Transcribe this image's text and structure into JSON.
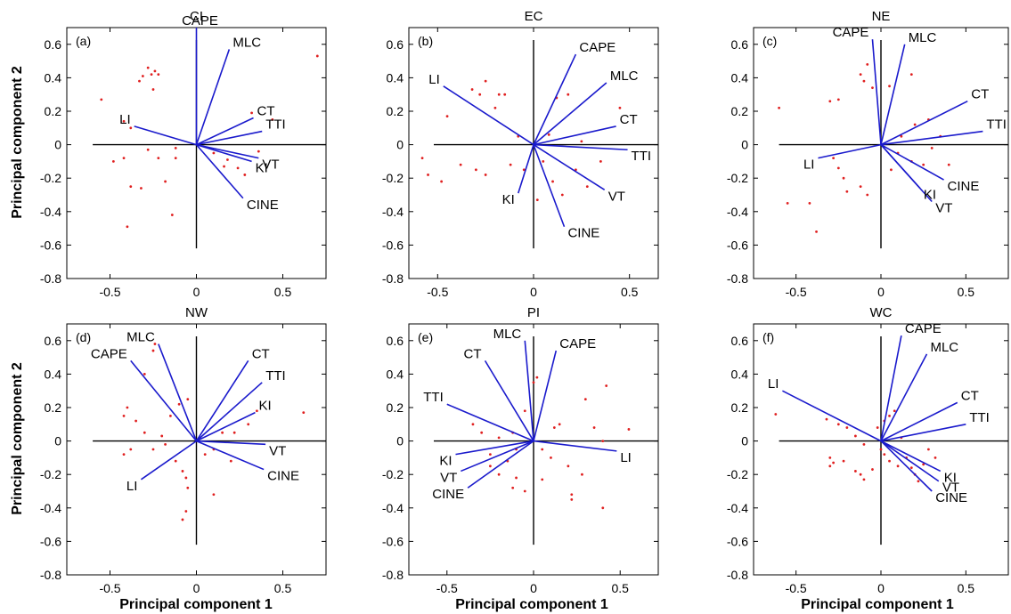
{
  "figure": {
    "ylabel": "Principal component 2",
    "xlabel": "Principal component 1"
  },
  "colors": {
    "vector": "#1a1acc",
    "point": "#e02020",
    "axes": "#000000"
  },
  "chart_data": [
    {
      "type": "scatter",
      "panel": "(a)",
      "title": "CI",
      "xlim": [
        -0.75,
        0.75
      ],
      "ylim": [
        -0.8,
        0.7
      ],
      "xticks": [
        -0.5,
        0,
        0.5
      ],
      "xtick_labels": [
        "-0.5",
        "0",
        "0.5"
      ],
      "yticks": [
        -0.8,
        -0.6,
        -0.4,
        -0.2,
        0,
        0.2,
        0.4,
        0.6
      ],
      "ytick_labels": [
        "-0.8",
        "-0.6",
        "-0.4",
        "-0.2",
        "0",
        "0.2",
        "0.4",
        "0.6"
      ],
      "vectors": [
        {
          "label": "CAPE",
          "x": 0.0,
          "y": 0.7
        },
        {
          "label": "MLC",
          "x": 0.19,
          "y": 0.57
        },
        {
          "label": "CT",
          "x": 0.33,
          "y": 0.16
        },
        {
          "label": "TTI",
          "x": 0.38,
          "y": 0.08
        },
        {
          "label": "KI",
          "x": 0.32,
          "y": -0.1
        },
        {
          "label": "VT",
          "x": 0.36,
          "y": -0.08
        },
        {
          "label": "CINE",
          "x": 0.27,
          "y": -0.32
        },
        {
          "label": "LI",
          "x": -0.36,
          "y": 0.11
        }
      ],
      "points": [
        [
          -0.28,
          0.46
        ],
        [
          -0.26,
          0.42
        ],
        [
          -0.22,
          0.42
        ],
        [
          -0.24,
          0.44
        ],
        [
          -0.31,
          0.41
        ],
        [
          -0.33,
          0.38
        ],
        [
          -0.25,
          0.33
        ],
        [
          -0.55,
          0.27
        ],
        [
          -0.42,
          0.14
        ],
        [
          -0.38,
          0.1
        ],
        [
          -0.28,
          -0.03
        ],
        [
          -0.22,
          -0.08
        ],
        [
          -0.12,
          -0.02
        ],
        [
          -0.42,
          -0.08
        ],
        [
          -0.48,
          -0.1
        ],
        [
          -0.38,
          -0.25
        ],
        [
          -0.32,
          -0.26
        ],
        [
          -0.18,
          -0.22
        ],
        [
          -0.14,
          -0.42
        ],
        [
          -0.4,
          -0.49
        ],
        [
          -0.12,
          -0.08
        ],
        [
          0.1,
          -0.05
        ],
        [
          0.16,
          -0.13
        ],
        [
          0.24,
          -0.14
        ],
        [
          0.28,
          -0.18
        ],
        [
          0.32,
          0.19
        ],
        [
          0.44,
          0.15
        ],
        [
          0.7,
          0.53
        ],
        [
          0.36,
          -0.04
        ],
        [
          0.18,
          -0.09
        ]
      ]
    },
    {
      "type": "scatter",
      "panel": "(b)",
      "title": "EC",
      "xlim": [
        -0.65,
        0.65
      ],
      "ylim": [
        -0.8,
        0.7
      ],
      "xticks": [
        -0.5,
        0,
        0.5
      ],
      "xtick_labels": [
        "-0.5",
        "0",
        "0.5"
      ],
      "yticks": [
        -0.8,
        -0.6,
        -0.4,
        -0.2,
        0,
        0.2,
        0.4,
        0.6
      ],
      "ytick_labels": [
        "-0.8",
        "-0.6",
        "-0.4",
        "-0.2",
        "0",
        "0.2",
        "0.4",
        "0.6"
      ],
      "vectors": [
        {
          "label": "CAPE",
          "x": 0.22,
          "y": 0.54
        },
        {
          "label": "MLC",
          "x": 0.38,
          "y": 0.37
        },
        {
          "label": "CT",
          "x": 0.43,
          "y": 0.11
        },
        {
          "label": "TTI",
          "x": 0.49,
          "y": -0.03
        },
        {
          "label": "VT",
          "x": 0.37,
          "y": -0.27
        },
        {
          "label": "CINE",
          "x": 0.16,
          "y": -0.49
        },
        {
          "label": "KI",
          "x": -0.08,
          "y": -0.29
        },
        {
          "label": "LI",
          "x": -0.47,
          "y": 0.35
        }
      ],
      "points": [
        [
          -0.25,
          0.38
        ],
        [
          -0.32,
          0.33
        ],
        [
          -0.28,
          0.3
        ],
        [
          -0.18,
          0.3
        ],
        [
          -0.15,
          0.3
        ],
        [
          -0.2,
          0.22
        ],
        [
          -0.45,
          0.17
        ],
        [
          -0.58,
          -0.08
        ],
        [
          -0.55,
          -0.18
        ],
        [
          -0.48,
          -0.22
        ],
        [
          -0.38,
          -0.12
        ],
        [
          -0.3,
          -0.15
        ],
        [
          -0.25,
          -0.18
        ],
        [
          -0.12,
          -0.12
        ],
        [
          -0.05,
          -0.15
        ],
        [
          0.05,
          -0.1
        ],
        [
          0.1,
          -0.22
        ],
        [
          0.15,
          -0.3
        ],
        [
          0.22,
          -0.15
        ],
        [
          0.28,
          -0.25
        ],
        [
          0.35,
          -0.1
        ],
        [
          0.12,
          0.28
        ],
        [
          0.18,
          0.3
        ],
        [
          0.25,
          0.02
        ],
        [
          0.45,
          0.22
        ],
        [
          0.08,
          0.06
        ],
        [
          -0.08,
          0.05
        ],
        [
          0.02,
          -0.33
        ]
      ]
    },
    {
      "type": "scatter",
      "panel": "(c)",
      "title": "NE",
      "xlim": [
        -0.75,
        0.75
      ],
      "ylim": [
        -0.8,
        0.7
      ],
      "xticks": [
        -0.5,
        0,
        0.5
      ],
      "xtick_labels": [
        "-0.5",
        "0",
        "0.5"
      ],
      "yticks": [
        -0.8,
        -0.6,
        -0.4,
        -0.2,
        0,
        0.2,
        0.4,
        0.6
      ],
      "ytick_labels": [
        "-0.8",
        "-0.6",
        "-0.4",
        "-0.2",
        "0",
        "0.2",
        "0.4",
        "0.6"
      ],
      "vectors": [
        {
          "label": "CAPE",
          "x": -0.05,
          "y": 0.63
        },
        {
          "label": "MLC",
          "x": 0.14,
          "y": 0.6
        },
        {
          "label": "CT",
          "x": 0.51,
          "y": 0.26
        },
        {
          "label": "TTI",
          "x": 0.6,
          "y": 0.08
        },
        {
          "label": "CINE",
          "x": 0.37,
          "y": -0.21
        },
        {
          "label": "VT",
          "x": 0.3,
          "y": -0.34
        },
        {
          "label": "KI",
          "x": 0.23,
          "y": -0.26
        },
        {
          "label": "LI",
          "x": -0.37,
          "y": -0.08
        }
      ],
      "points": [
        [
          -0.08,
          0.48
        ],
        [
          -0.12,
          0.42
        ],
        [
          -0.1,
          0.38
        ],
        [
          -0.05,
          0.34
        ],
        [
          0.05,
          0.35
        ],
        [
          0.18,
          0.42
        ],
        [
          -0.6,
          0.22
        ],
        [
          -0.3,
          0.26
        ],
        [
          -0.25,
          0.27
        ],
        [
          -0.28,
          -0.08
        ],
        [
          -0.25,
          -0.14
        ],
        [
          -0.22,
          -0.2
        ],
        [
          -0.2,
          -0.28
        ],
        [
          -0.42,
          -0.35
        ],
        [
          -0.55,
          -0.35
        ],
        [
          -0.38,
          -0.52
        ],
        [
          -0.12,
          -0.25
        ],
        [
          -0.08,
          -0.3
        ],
        [
          0.1,
          -0.05
        ],
        [
          0.18,
          -0.1
        ],
        [
          0.25,
          -0.12
        ],
        [
          0.3,
          -0.02
        ],
        [
          0.35,
          0.05
        ],
        [
          0.4,
          -0.12
        ],
        [
          0.12,
          0.05
        ],
        [
          0.2,
          0.12
        ],
        [
          0.28,
          0.15
        ],
        [
          0.06,
          -0.15
        ]
      ]
    },
    {
      "type": "scatter",
      "panel": "(d)",
      "title": "NW",
      "xlim": [
        -0.75,
        0.75
      ],
      "ylim": [
        -0.8,
        0.7
      ],
      "xticks": [
        -0.5,
        0,
        0.5
      ],
      "xtick_labels": [
        "-0.5",
        "0",
        "0.5"
      ],
      "yticks": [
        -0.8,
        -0.6,
        -0.4,
        -0.2,
        0,
        0.2,
        0.4,
        0.6
      ],
      "ytick_labels": [
        "-0.8",
        "-0.6",
        "-0.4",
        "-0.2",
        "0",
        "0.2",
        "0.4",
        "0.6"
      ],
      "vectors": [
        {
          "label": "CAPE",
          "x": -0.38,
          "y": 0.48
        },
        {
          "label": "MLC",
          "x": -0.22,
          "y": 0.58
        },
        {
          "label": "CT",
          "x": 0.3,
          "y": 0.48
        },
        {
          "label": "TTI",
          "x": 0.38,
          "y": 0.35
        },
        {
          "label": "KI",
          "x": 0.34,
          "y": 0.17
        },
        {
          "label": "VT",
          "x": 0.4,
          "y": -0.02
        },
        {
          "label": "CINE",
          "x": 0.39,
          "y": -0.17
        },
        {
          "label": "LI",
          "x": -0.32,
          "y": -0.23
        }
      ],
      "points": [
        [
          -0.24,
          0.58
        ],
        [
          -0.25,
          0.54
        ],
        [
          -0.3,
          0.4
        ],
        [
          -0.05,
          0.25
        ],
        [
          -0.1,
          0.22
        ],
        [
          -0.4,
          0.2
        ],
        [
          -0.42,
          0.15
        ],
        [
          -0.35,
          0.12
        ],
        [
          -0.3,
          0.05
        ],
        [
          -0.2,
          0.03
        ],
        [
          -0.15,
          0.15
        ],
        [
          -0.38,
          -0.05
        ],
        [
          -0.42,
          -0.08
        ],
        [
          -0.25,
          -0.05
        ],
        [
          -0.18,
          -0.02
        ],
        [
          -0.12,
          -0.12
        ],
        [
          -0.08,
          -0.18
        ],
        [
          -0.06,
          -0.22
        ],
        [
          -0.05,
          -0.28
        ],
        [
          -0.06,
          -0.42
        ],
        [
          -0.08,
          -0.47
        ],
        [
          0.1,
          -0.32
        ],
        [
          0.15,
          0.05
        ],
        [
          0.22,
          0.05
        ],
        [
          0.3,
          0.1
        ],
        [
          0.35,
          0.18
        ],
        [
          0.62,
          0.17
        ],
        [
          0.1,
          -0.05
        ],
        [
          0.2,
          -0.12
        ],
        [
          0.05,
          -0.08
        ]
      ]
    },
    {
      "type": "scatter",
      "panel": "(e)",
      "title": "PI",
      "xlim": [
        -0.72,
        0.72
      ],
      "ylim": [
        -0.8,
        0.7
      ],
      "xticks": [
        -0.5,
        0,
        0.5
      ],
      "xtick_labels": [
        "-0.5",
        "0",
        "0.5"
      ],
      "yticks": [
        -0.8,
        -0.6,
        -0.4,
        -0.2,
        0,
        0.2,
        0.4,
        0.6
      ],
      "ytick_labels": [
        "-0.8",
        "-0.6",
        "-0.4",
        "-0.2",
        "0",
        "0.2",
        "0.4",
        "0.6"
      ],
      "vectors": [
        {
          "label": "MLC",
          "x": -0.05,
          "y": 0.6
        },
        {
          "label": "CAPE",
          "x": 0.13,
          "y": 0.54
        },
        {
          "label": "CT",
          "x": -0.28,
          "y": 0.48
        },
        {
          "label": "TTI",
          "x": -0.5,
          "y": 0.22
        },
        {
          "label": "KI",
          "x": -0.45,
          "y": -0.08
        },
        {
          "label": "VT",
          "x": -0.42,
          "y": -0.18
        },
        {
          "label": "CINE",
          "x": -0.38,
          "y": -0.28
        },
        {
          "label": "LI",
          "x": 0.48,
          "y": -0.06
        }
      ],
      "points": [
        [
          0.0,
          0.35
        ],
        [
          0.02,
          0.38
        ],
        [
          -0.05,
          0.18
        ],
        [
          -0.12,
          0.05
        ],
        [
          -0.2,
          0.02
        ],
        [
          -0.3,
          0.05
        ],
        [
          -0.35,
          0.1
        ],
        [
          -0.1,
          -0.05
        ],
        [
          -0.15,
          -0.12
        ],
        [
          -0.2,
          -0.2
        ],
        [
          -0.25,
          -0.15
        ],
        [
          -0.1,
          -0.22
        ],
        [
          -0.12,
          -0.28
        ],
        [
          -0.05,
          -0.3
        ],
        [
          0.05,
          -0.23
        ],
        [
          0.1,
          -0.1
        ],
        [
          0.12,
          0.08
        ],
        [
          0.15,
          0.1
        ],
        [
          0.2,
          -0.15
        ],
        [
          0.22,
          -0.35
        ],
        [
          0.28,
          -0.2
        ],
        [
          0.3,
          0.25
        ],
        [
          0.35,
          0.08
        ],
        [
          0.4,
          0.0
        ],
        [
          0.42,
          0.33
        ],
        [
          0.4,
          -0.4
        ],
        [
          0.22,
          -0.32
        ],
        [
          0.55,
          0.07
        ],
        [
          -0.25,
          -0.08
        ],
        [
          0.05,
          -0.05
        ]
      ]
    },
    {
      "type": "scatter",
      "panel": "(f)",
      "title": "WC",
      "xlim": [
        -0.75,
        0.75
      ],
      "ylim": [
        -0.8,
        0.7
      ],
      "xticks": [
        -0.5,
        0,
        0.5
      ],
      "xtick_labels": [
        "-0.5",
        "0",
        "0.5"
      ],
      "yticks": [
        -0.8,
        -0.6,
        -0.4,
        -0.2,
        0,
        0.2,
        0.4,
        0.6
      ],
      "ytick_labels": [
        "-0.8",
        "-0.6",
        "-0.4",
        "-0.2",
        "0",
        "0.2",
        "0.4",
        "0.6"
      ],
      "vectors": [
        {
          "label": "CAPE",
          "x": 0.12,
          "y": 0.63
        },
        {
          "label": "MLC",
          "x": 0.27,
          "y": 0.52
        },
        {
          "label": "CT",
          "x": 0.45,
          "y": 0.23
        },
        {
          "label": "TTI",
          "x": 0.5,
          "y": 0.1
        },
        {
          "label": "KI",
          "x": 0.35,
          "y": -0.18
        },
        {
          "label": "VT",
          "x": 0.34,
          "y": -0.24
        },
        {
          "label": "CINE",
          "x": 0.3,
          "y": -0.3
        },
        {
          "label": "LI",
          "x": -0.58,
          "y": 0.3
        }
      ],
      "points": [
        [
          -0.62,
          0.16
        ],
        [
          -0.32,
          0.13
        ],
        [
          -0.25,
          0.1
        ],
        [
          -0.2,
          0.08
        ],
        [
          -0.15,
          0.03
        ],
        [
          -0.1,
          -0.02
        ],
        [
          -0.3,
          -0.1
        ],
        [
          -0.28,
          -0.13
        ],
        [
          -0.3,
          -0.15
        ],
        [
          -0.22,
          -0.12
        ],
        [
          -0.15,
          -0.18
        ],
        [
          -0.12,
          -0.2
        ],
        [
          -0.1,
          -0.23
        ],
        [
          -0.05,
          -0.17
        ],
        [
          0.02,
          -0.08
        ],
        [
          0.05,
          -0.12
        ],
        [
          0.1,
          -0.15
        ],
        [
          0.15,
          -0.1
        ],
        [
          0.18,
          -0.16
        ],
        [
          0.2,
          -0.2
        ],
        [
          0.25,
          -0.14
        ],
        [
          0.05,
          0.15
        ],
        [
          0.08,
          0.18
        ],
        [
          0.02,
          0.12
        ],
        [
          0.12,
          0.02
        ],
        [
          0.28,
          -0.05
        ],
        [
          0.0,
          -0.05
        ],
        [
          0.32,
          -0.1
        ],
        [
          -0.02,
          0.08
        ],
        [
          0.22,
          -0.24
        ]
      ]
    }
  ]
}
